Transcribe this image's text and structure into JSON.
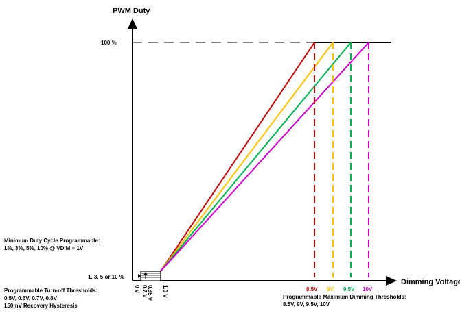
{
  "labels": {
    "y_axis": "PWM Duty",
    "x_axis": "Dimming Voltage",
    "full_scale": "100 %",
    "min_levels": "1, 3, 5 or 10 %",
    "zero_v": "0 V",
    "threshold_0_7": "0.7 V",
    "threshold_0_85": "0.85 V",
    "one_v": "1.0 V"
  },
  "notes": {
    "min_duty_line1": "Minimum Duty Cycle Programmable:",
    "min_duty_line2": "1%, 3%, 5%, 10% @ VDIM = 1V",
    "turnoff_line1": "Programmable Turn-off Thresholds:",
    "turnoff_line2": "0.5V, 0.6V, 0.7V, 0.8V",
    "turnoff_line3": "150mV Recovery Hysteresis",
    "max_line1": "Programmable Maximum Dimming Thresholds:",
    "max_line2": "8.5V, 9V, 9.5V, 10V"
  },
  "chart_data": {
    "type": "line",
    "xlabel": "Dimming Voltage",
    "ylabel": "PWM Duty",
    "series": [
      {
        "name": "8.5V",
        "color": "#c00000",
        "x": [
          1.0,
          8.5,
          10.3
        ],
        "y": [
          1,
          100,
          100
        ]
      },
      {
        "name": "9V",
        "color": "#ffc000",
        "x": [
          1.0,
          9.0
        ],
        "y": [
          1,
          100
        ]
      },
      {
        "name": "9.5V",
        "color": "#00b050",
        "x": [
          1.0,
          9.5
        ],
        "y": [
          1,
          100
        ]
      },
      {
        "name": "10V",
        "color": "#cc00cc",
        "x": [
          1.0,
          10.0
        ],
        "y": [
          1,
          100
        ]
      }
    ]
  }
}
